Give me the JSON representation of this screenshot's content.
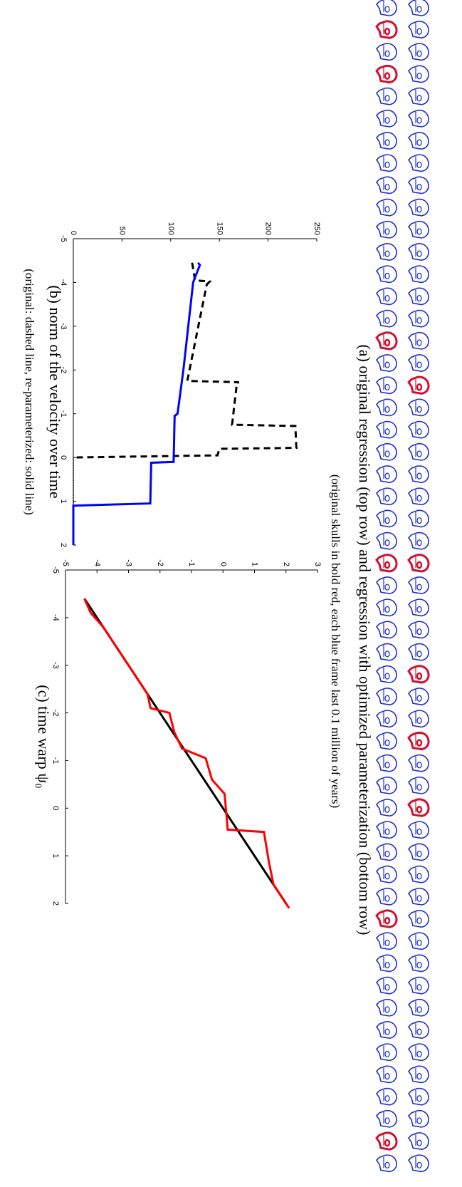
{
  "figure": {
    "caption": "(a) original regression (top row) and regression with optimized parameterization (bottom row)",
    "subcaption": "(original skulls in bold red, each blue frame last 0.1 million of years)"
  },
  "chart_data": [
    {
      "type": "line",
      "title": "(b) norm of the velocity over time",
      "subtitle": "(original: dashed line, re-parameterized: solid line)",
      "xlim": [
        -5,
        2
      ],
      "xticks": [
        -5,
        -4,
        -3,
        -2,
        -1,
        0,
        1,
        2
      ],
      "ylim": [
        0,
        250
      ],
      "yticks": [
        0,
        50,
        100,
        150,
        200,
        250
      ],
      "series": [
        {
          "color": "#000000",
          "style": "dashed",
          "x": [
            -4.45,
            -4.05,
            -4.02,
            -3.95,
            -1.75,
            -1.72,
            -1.7,
            -0.75,
            -0.72,
            -0.22,
            -0.2,
            -0.05,
            0
          ],
          "values": [
            122,
            125,
            140,
            137,
            117,
            170,
            168,
            163,
            228,
            229,
            150,
            148,
            0
          ]
        },
        {
          "color": "#000000",
          "style": "dotted",
          "x": [
            0,
            2
          ],
          "values": [
            0,
            0
          ]
        },
        {
          "color": "#0000ff",
          "style": "solid",
          "x": [
            -4.45,
            -4.4,
            -4.0,
            -2.2,
            -2.0,
            -1.0,
            -0.95,
            0.1,
            0.12,
            1.05,
            1.1,
            2
          ],
          "values": [
            128,
            130,
            123,
            114,
            113,
            107,
            104,
            103,
            80,
            79,
            0,
            0
          ]
        }
      ]
    },
    {
      "type": "line",
      "title": "(c) time warp ψ₀",
      "xlim": [
        -5,
        2
      ],
      "xticks": [
        -5,
        -4,
        -3,
        -2,
        -1,
        0,
        1,
        2
      ],
      "ylim": [
        -5,
        3
      ],
      "yticks": [
        -5,
        -4,
        -3,
        -2,
        -1,
        0,
        1,
        2,
        3
      ],
      "series": [
        {
          "color": "#000000",
          "style": "solid",
          "x": [
            -4.4,
            2
          ],
          "values": [
            -4.4,
            2
          ]
        },
        {
          "color": "#ff0000",
          "style": "solid",
          "x": [
            -4.4,
            -4.1,
            -3.8,
            -2.8,
            -2.4,
            -2.1,
            -2.0,
            -1.6,
            -1.25,
            -1.05,
            -0.6,
            -0.3,
            0.45,
            0.5,
            1.1,
            1.6,
            2.1
          ],
          "values": [
            -4.4,
            -4.2,
            -3.8,
            -2.8,
            -2.4,
            -2.3,
            -1.7,
            -1.55,
            -1.3,
            -0.55,
            -0.35,
            0.05,
            0.15,
            1.3,
            1.45,
            1.6,
            2.1
          ]
        }
      ]
    }
  ]
}
